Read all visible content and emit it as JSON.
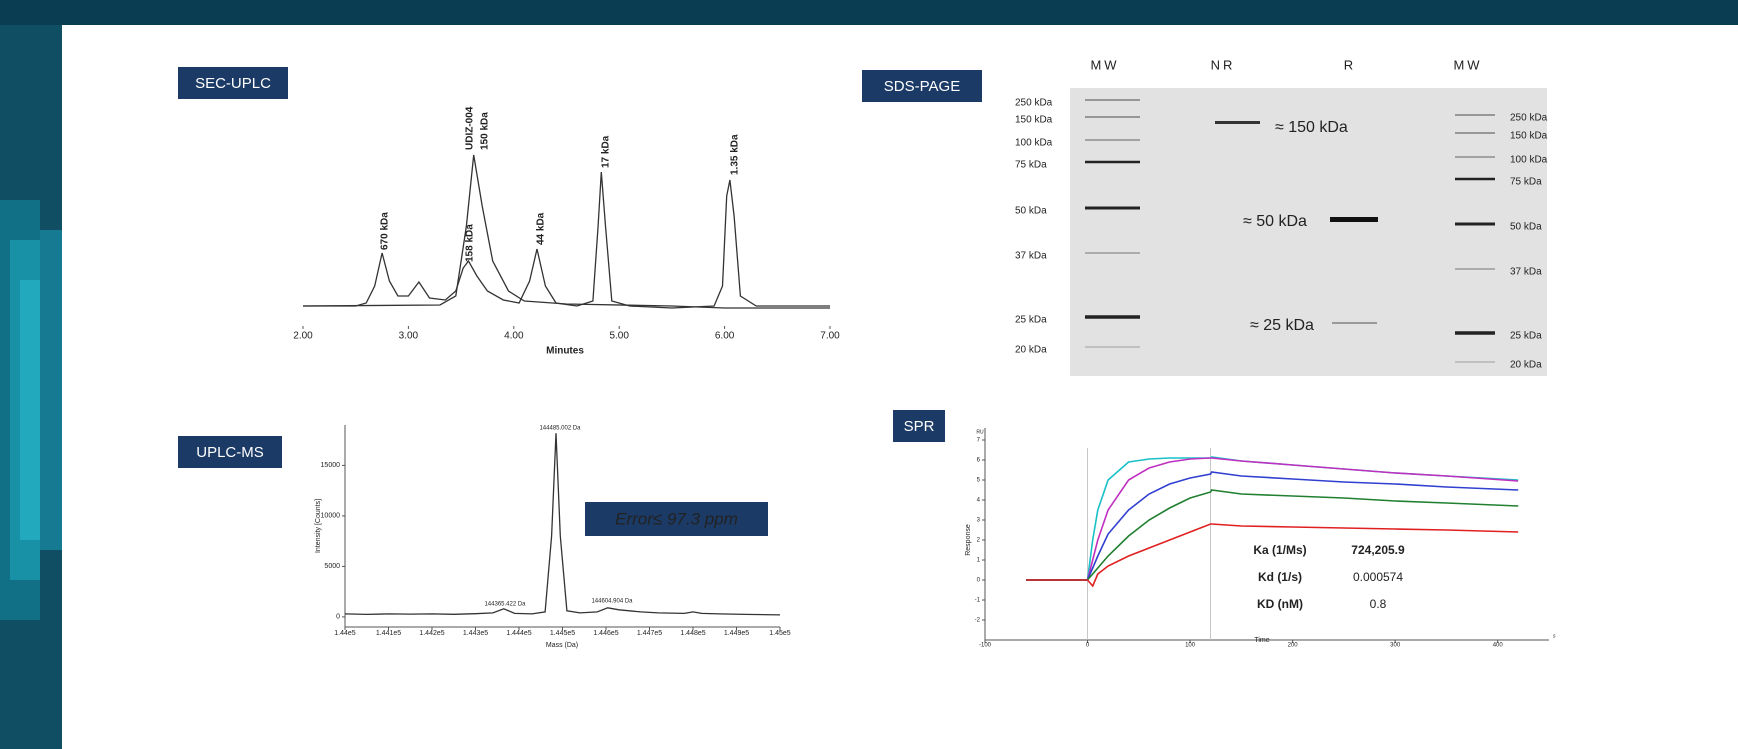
{
  "chart_data": [
    {
      "type": "line",
      "title": "SEC-UPLC",
      "xlabel": "Minutes",
      "xlim": [
        2,
        7
      ],
      "ylim": [
        -15,
        165
      ],
      "xticks": [
        {
          "value": 2,
          "label": "2.00"
        },
        {
          "value": 3,
          "label": "3.00"
        },
        {
          "value": 4,
          "label": "4.00"
        },
        {
          "value": 5,
          "label": "5.00"
        },
        {
          "value": 6,
          "label": "6.00"
        },
        {
          "value": 7,
          "label": "7.00"
        }
      ],
      "annotations": [
        "670 kDa",
        "158 kDa",
        "UDIZ-004",
        "150 kDa",
        "44 kDa",
        "17 kDa",
        "1.35 kDa"
      ],
      "series": [
        {
          "color": "#333333",
          "x": [
            2.0,
            2.5,
            2.6,
            2.68,
            2.75,
            2.82,
            2.9,
            3.0,
            3.1,
            3.2,
            3.35,
            3.45,
            3.52,
            3.57,
            3.65,
            3.75,
            3.9,
            4.05,
            4.15,
            4.22,
            4.3,
            4.4,
            4.6,
            4.75,
            4.8,
            4.83,
            4.87,
            4.93,
            5.1,
            5.5,
            5.9,
            5.98,
            6.02,
            6.05,
            6.09,
            6.15,
            6.3,
            7.0
          ],
          "values": [
            0,
            0,
            3,
            20,
            53,
            25,
            10,
            10,
            24,
            8,
            6,
            15,
            38,
            45,
            30,
            15,
            6,
            3,
            25,
            57,
            20,
            3,
            0,
            5,
            80,
            134,
            80,
            5,
            0,
            -2,
            0,
            20,
            110,
            126,
            90,
            10,
            0,
            0
          ]
        },
        {
          "color": "#333333",
          "x": [
            2.0,
            3.3,
            3.45,
            3.55,
            3.62,
            3.7,
            3.8,
            3.95,
            4.1,
            4.5,
            5.5,
            6.0,
            7.0
          ],
          "values": [
            0,
            1,
            10,
            80,
            151,
            100,
            45,
            15,
            5,
            2,
            0,
            -2,
            -2
          ]
        }
      ]
    },
    {
      "type": "gel",
      "title": "SDS-PAGE",
      "lanes": [
        "MW",
        "NR",
        "R",
        "MW"
      ],
      "markers_left": [
        "250 kDa",
        "150 kDa",
        "100 kDa",
        "75 kDa",
        "50 kDa",
        "37 kDa",
        "25 kDa",
        "20 kDa"
      ],
      "markers_right": [
        "250 kDa",
        "150 kDa",
        "100 kDa",
        "75 kDa",
        "50 kDa",
        "37 kDa",
        "25 kDa",
        "20 kDa"
      ],
      "band_labels": [
        "≈ 150 kDa",
        "≈ 50 kDa",
        "≈ 25 kDa"
      ]
    },
    {
      "type": "line",
      "title": "UPLC-MS",
      "xlabel": "Mass (Da)",
      "ylabel": "Intensity [Counts]",
      "note": "Error≤ 97.3 ppm",
      "xlim": [
        144000,
        145000
      ],
      "ylim": [
        -1000,
        19000
      ],
      "xticks": [
        {
          "value": 144000,
          "label": "1.44e5"
        },
        {
          "value": 144100,
          "label": "1.441e5"
        },
        {
          "value": 144200,
          "label": "1.442e5"
        },
        {
          "value": 144300,
          "label": "1.443e5"
        },
        {
          "value": 144400,
          "label": "1.444e5"
        },
        {
          "value": 144500,
          "label": "1.445e5"
        },
        {
          "value": 144600,
          "label": "1.446e5"
        },
        {
          "value": 144700,
          "label": "1.447e5"
        },
        {
          "value": 144800,
          "label": "1.448e5"
        },
        {
          "value": 144900,
          "label": "1.449e5"
        },
        {
          "value": 145000,
          "label": "1.45e5"
        }
      ],
      "yticks": [
        0,
        5000,
        10000,
        15000
      ],
      "annotations": [
        "144485.002 Da",
        "144365.422 Da",
        "144604.904 Da"
      ],
      "series": [
        {
          "color": "#333333",
          "x": [
            144000,
            144050,
            144100,
            144150,
            144200,
            144250,
            144300,
            144340,
            144365,
            144390,
            144430,
            144460,
            144475,
            144485,
            144495,
            144510,
            144540,
            144580,
            144604,
            144630,
            144680,
            144720,
            144780,
            144800,
            144820,
            144860,
            144920,
            145000
          ],
          "values": [
            300,
            250,
            300,
            280,
            300,
            260,
            320,
            400,
            800,
            350,
            300,
            500,
            8000,
            18200,
            8000,
            600,
            400,
            500,
            900,
            700,
            500,
            400,
            350,
            500,
            350,
            300,
            250,
            200
          ]
        }
      ]
    },
    {
      "type": "line",
      "title": "SPR",
      "xlabel": "Time",
      "ylabel": "Response",
      "yunit": "RU",
      "xunit": "s",
      "xlim": [
        -100,
        450
      ],
      "ylim": [
        -3,
        7.6
      ],
      "xticks": [
        -100,
        0,
        100,
        200,
        300,
        400
      ],
      "yticks": [
        -2,
        -1,
        0,
        1,
        2,
        3,
        4,
        5,
        6,
        7
      ],
      "table": [
        [
          "Ka (1/Ms)",
          "724,205.9"
        ],
        [
          "Kd (1/s)",
          "0.000574"
        ],
        [
          "KD (nM)",
          "0.8"
        ]
      ],
      "series": [
        {
          "color": "#19c0c8",
          "x": [
            -60,
            -30,
            0,
            5,
            10,
            20,
            40,
            60,
            80,
            100,
            120,
            121,
            150,
            200,
            250,
            300,
            350,
            420
          ],
          "values": [
            0,
            0,
            0,
            2.0,
            3.5,
            5.0,
            5.9,
            6.05,
            6.1,
            6.1,
            6.1,
            6.15,
            5.95,
            5.75,
            5.55,
            5.35,
            5.2,
            5.0
          ]
        },
        {
          "color": "#c030c0",
          "x": [
            -60,
            -30,
            0,
            5,
            10,
            20,
            40,
            60,
            80,
            100,
            120,
            121,
            150,
            200,
            250,
            300,
            350,
            420
          ],
          "values": [
            0,
            0,
            0,
            1.0,
            2.0,
            3.5,
            5.0,
            5.6,
            5.9,
            6.05,
            6.1,
            6.1,
            5.95,
            5.75,
            5.55,
            5.35,
            5.2,
            4.95
          ]
        },
        {
          "color": "#3040d0",
          "x": [
            -60,
            -30,
            0,
            5,
            10,
            20,
            40,
            60,
            80,
            100,
            120,
            121,
            150,
            200,
            250,
            300,
            350,
            420
          ],
          "values": [
            0,
            0,
            0,
            0.6,
            1.2,
            2.3,
            3.5,
            4.3,
            4.8,
            5.1,
            5.3,
            5.4,
            5.2,
            5.05,
            4.9,
            4.8,
            4.65,
            4.5
          ]
        },
        {
          "color": "#208030",
          "x": [
            -60,
            -30,
            0,
            5,
            10,
            20,
            40,
            60,
            80,
            100,
            120,
            121,
            150,
            200,
            250,
            300,
            350,
            420
          ],
          "values": [
            0,
            0,
            0,
            0.3,
            0.6,
            1.2,
            2.2,
            3.0,
            3.6,
            4.1,
            4.4,
            4.5,
            4.3,
            4.2,
            4.1,
            3.95,
            3.85,
            3.7
          ]
        },
        {
          "color": "#e02020",
          "x": [
            -60,
            -30,
            0,
            5,
            10,
            20,
            40,
            60,
            80,
            100,
            120,
            121,
            150,
            200,
            250,
            300,
            350,
            420
          ],
          "values": [
            0,
            0,
            0,
            -0.3,
            0.3,
            0.7,
            1.2,
            1.6,
            2.0,
            2.4,
            2.8,
            2.8,
            2.7,
            2.65,
            2.6,
            2.55,
            2.5,
            2.4
          ]
        }
      ]
    }
  ]
}
